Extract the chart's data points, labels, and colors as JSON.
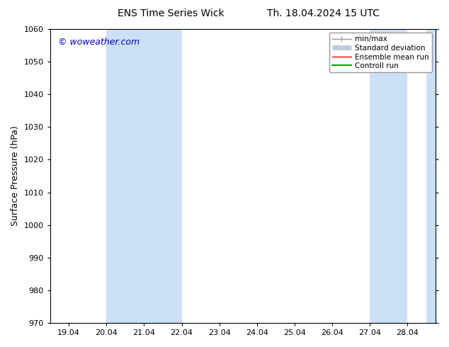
{
  "title_left": "ENS Time Series Wick",
  "title_right": "Th. 18.04.2024 15 UTC",
  "ylabel": "Surface Pressure (hPa)",
  "ylim": [
    970,
    1060
  ],
  "yticks": [
    970,
    980,
    990,
    1000,
    1010,
    1020,
    1030,
    1040,
    1050,
    1060
  ],
  "xtick_labels": [
    "19.04",
    "20.04",
    "21.04",
    "22.04",
    "23.04",
    "24.04",
    "25.04",
    "26.04",
    "27.04",
    "28.04"
  ],
  "watermark": "© woweather.com",
  "watermark_color": "#0000cc",
  "background_color": "#ffffff",
  "shaded_bands": [
    {
      "xmin": 1,
      "xmax": 3,
      "color": "#cce0f5"
    },
    {
      "xmin": 8,
      "xmax": 9,
      "color": "#cce0f5"
    },
    {
      "xmin": 9.5,
      "xmax": 10.0,
      "color": "#cce0f5"
    }
  ],
  "legend_entries": [
    {
      "label": "min/max",
      "color": "#999999",
      "lw": 1.0
    },
    {
      "label": "Standard deviation",
      "color": "#bbccdd",
      "lw": 5
    },
    {
      "label": "Ensemble mean run",
      "color": "#ff0000",
      "lw": 1.0
    },
    {
      "label": "Controll run",
      "color": "#00aa00",
      "lw": 1.5
    }
  ],
  "title_fontsize": 10,
  "tick_fontsize": 8,
  "ylabel_fontsize": 9,
  "watermark_fontsize": 9,
  "xlim": [
    -0.5,
    10.0
  ]
}
